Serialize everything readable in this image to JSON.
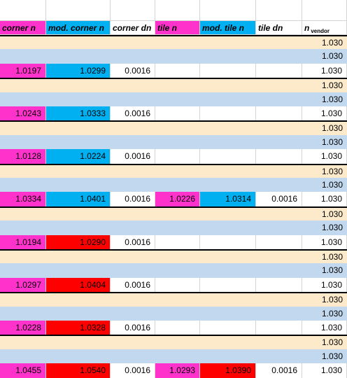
{
  "columns": [
    {
      "key": "corner_n",
      "label": "corner n"
    },
    {
      "key": "mod_corner_n",
      "label": "mod. corner n"
    },
    {
      "key": "corner_dn",
      "label": "corner dn"
    },
    {
      "key": "tile_n",
      "label": "tile n"
    },
    {
      "key": "mod_tile_n",
      "label": "mod. tile n"
    },
    {
      "key": "tile_dn",
      "label": "tile dn"
    },
    {
      "key": "n_vendor",
      "label": "n",
      "sub": "vendor"
    }
  ],
  "colors": {
    "header_magenta": "#ff33cc",
    "header_cyan": "#00b0f0",
    "band_peach": "#fdeacb",
    "band_blue": "#c2d8ee",
    "magenta": "#ff33cc",
    "cyan": "#00b0f0",
    "red": "#ff0000",
    "white": "#ffffff",
    "rule": "#000000"
  },
  "rows": [
    {
      "band": "peach",
      "v": [
        "",
        "",
        "",
        "",
        "",
        "",
        "1.030"
      ]
    },
    {
      "band": "blue",
      "v": [
        "",
        "",
        "",
        "",
        "",
        "",
        "1.030"
      ]
    },
    {
      "band": "white",
      "v": [
        "1.0197",
        "1.0299",
        "0.0016",
        "",
        "",
        "",
        "1.030"
      ],
      "fill": [
        "magenta",
        "cyan",
        "",
        "",
        "",
        "",
        ""
      ]
    },
    {
      "band": "peach",
      "v": [
        "",
        "",
        "",
        "",
        "",
        "",
        "1.030"
      ]
    },
    {
      "band": "blue",
      "v": [
        "",
        "",
        "",
        "",
        "",
        "",
        "1.030"
      ]
    },
    {
      "band": "white",
      "v": [
        "1.0243",
        "1.0333",
        "0.0016",
        "",
        "",
        "",
        "1.030"
      ],
      "fill": [
        "magenta",
        "cyan",
        "",
        "",
        "",
        "",
        ""
      ]
    },
    {
      "band": "peach",
      "v": [
        "",
        "",
        "",
        "",
        "",
        "",
        "1.030"
      ]
    },
    {
      "band": "blue",
      "v": [
        "",
        "",
        "",
        "",
        "",
        "",
        "1.030"
      ]
    },
    {
      "band": "white",
      "v": [
        "1.0128",
        "1.0224",
        "0.0016",
        "",
        "",
        "",
        "1.030"
      ],
      "fill": [
        "magenta",
        "cyan",
        "",
        "",
        "",
        "",
        ""
      ]
    },
    {
      "band": "peach",
      "v": [
        "",
        "",
        "",
        "",
        "",
        "",
        "1.030"
      ]
    },
    {
      "band": "blue",
      "v": [
        "",
        "",
        "",
        "",
        "",
        "",
        "1.030"
      ]
    },
    {
      "band": "white",
      "v": [
        "1.0334",
        "1.0401",
        "0.0016",
        "1.0226",
        "1.0314",
        "0.0016",
        "1.030"
      ],
      "fill": [
        "magenta",
        "cyan",
        "",
        "magenta",
        "cyan",
        "",
        ""
      ]
    },
    {
      "band": "peach",
      "v": [
        "",
        "",
        "",
        "",
        "",
        "",
        "1.030"
      ]
    },
    {
      "band": "blue",
      "v": [
        "",
        "",
        "",
        "",
        "",
        "",
        "1.030"
      ]
    },
    {
      "band": "white",
      "v": [
        "1.0194",
        "1.0290",
        "0.0016",
        "",
        "",
        "",
        "1.030"
      ],
      "fill": [
        "magenta",
        "red",
        "",
        "",
        "",
        "",
        ""
      ]
    },
    {
      "band": "peach",
      "v": [
        "",
        "",
        "",
        "",
        "",
        "",
        "1.030"
      ]
    },
    {
      "band": "blue",
      "v": [
        "",
        "",
        "",
        "",
        "",
        "",
        "1.030"
      ]
    },
    {
      "band": "white",
      "v": [
        "1.0297",
        "1.0404",
        "0.0016",
        "",
        "",
        "",
        "1.030"
      ],
      "fill": [
        "magenta",
        "red",
        "",
        "",
        "",
        "",
        ""
      ]
    },
    {
      "band": "peach",
      "v": [
        "",
        "",
        "",
        "",
        "",
        "",
        "1.030"
      ]
    },
    {
      "band": "blue",
      "v": [
        "",
        "",
        "",
        "",
        "",
        "",
        "1.030"
      ]
    },
    {
      "band": "white",
      "v": [
        "1.0228",
        "1.0328",
        "0.0016",
        "",
        "",
        "",
        "1.030"
      ],
      "fill": [
        "magenta",
        "red",
        "",
        "",
        "",
        "",
        ""
      ]
    },
    {
      "band": "peach",
      "v": [
        "",
        "",
        "",
        "",
        "",
        "",
        "1.030"
      ]
    },
    {
      "band": "blue",
      "v": [
        "",
        "",
        "",
        "",
        "",
        "",
        "1.030"
      ]
    },
    {
      "band": "white",
      "v": [
        "1.0455",
        "1.0540",
        "0.0016",
        "1.0293",
        "1.0390",
        "0.0016",
        "1.030"
      ],
      "fill": [
        "magenta",
        "red",
        "",
        "magenta",
        "red",
        "",
        ""
      ]
    }
  ]
}
